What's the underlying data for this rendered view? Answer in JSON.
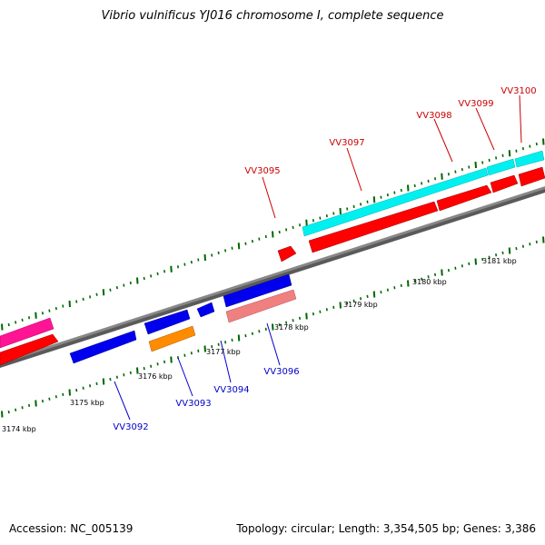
{
  "title": "Vibrio vulnificus YJ016 chromosome I, complete sequence",
  "footer": {
    "accession": "Accession: NC_005139",
    "summary": "Topology: circular; Length: 3,354,505 bp; Genes: 3,386"
  },
  "colors": {
    "backbone": "#7a7a7a",
    "forward_label": "#cc0000",
    "reverse_label": "#0000cc",
    "tick": "#006600",
    "red": "#ff0000",
    "cyan": "#00ffff",
    "blue": "#0000ee",
    "orange": "#ff8c00",
    "pink": "#ff1493",
    "salmon": "#f08080"
  },
  "ruler_labels": [
    "3174 kbp",
    "3175 kbp",
    "3176 kbp",
    "3177 kbp",
    "3178 kbp",
    "3179 kbp",
    "3180 kbp",
    "3181 kbp"
  ],
  "forward_genes": [
    "VV3095",
    "VV3097",
    "VV3098",
    "VV3099",
    "VV3100"
  ],
  "reverse_genes": [
    "VV3092",
    "VV3093",
    "VV3094",
    "VV3096"
  ]
}
